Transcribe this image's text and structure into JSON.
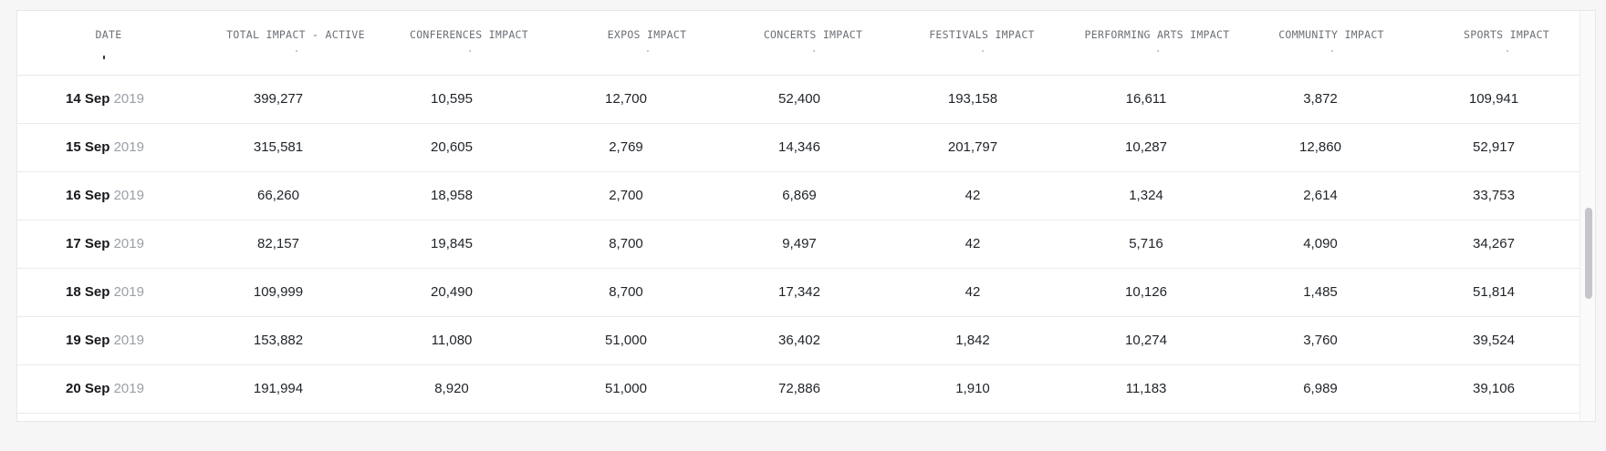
{
  "table": {
    "columns": [
      "DATE",
      "TOTAL IMPACT - ACTIVE",
      "CONFERENCES IMPACT",
      "EXPOS IMPACT",
      "CONCERTS IMPACT",
      "FESTIVALS IMPACT",
      "PERFORMING ARTS IMPACT",
      "COMMUNITY IMPACT",
      "SPORTS IMPACT"
    ],
    "rows": [
      {
        "day": "14 Sep",
        "year": "2019",
        "values": [
          "399,277",
          "10,595",
          "12,700",
          "52,400",
          "193,158",
          "16,611",
          "3,872",
          "109,941"
        ]
      },
      {
        "day": "15 Sep",
        "year": "2019",
        "values": [
          "315,581",
          "20,605",
          "2,769",
          "14,346",
          "201,797",
          "10,287",
          "12,860",
          "52,917"
        ]
      },
      {
        "day": "16 Sep",
        "year": "2019",
        "values": [
          "66,260",
          "18,958",
          "2,700",
          "6,869",
          "42",
          "1,324",
          "2,614",
          "33,753"
        ]
      },
      {
        "day": "17 Sep",
        "year": "2019",
        "values": [
          "82,157",
          "19,845",
          "8,700",
          "9,497",
          "42",
          "5,716",
          "4,090",
          "34,267"
        ]
      },
      {
        "day": "18 Sep",
        "year": "2019",
        "values": [
          "109,999",
          "20,490",
          "8,700",
          "17,342",
          "42",
          "10,126",
          "1,485",
          "51,814"
        ]
      },
      {
        "day": "19 Sep",
        "year": "2019",
        "values": [
          "153,882",
          "11,080",
          "51,000",
          "36,402",
          "1,842",
          "10,274",
          "3,760",
          "39,524"
        ]
      },
      {
        "day": "20 Sep",
        "year": "2019",
        "values": [
          "191,994",
          "8,920",
          "51,000",
          "72,886",
          "1,910",
          "11,183",
          "6,989",
          "39,106"
        ]
      }
    ]
  }
}
